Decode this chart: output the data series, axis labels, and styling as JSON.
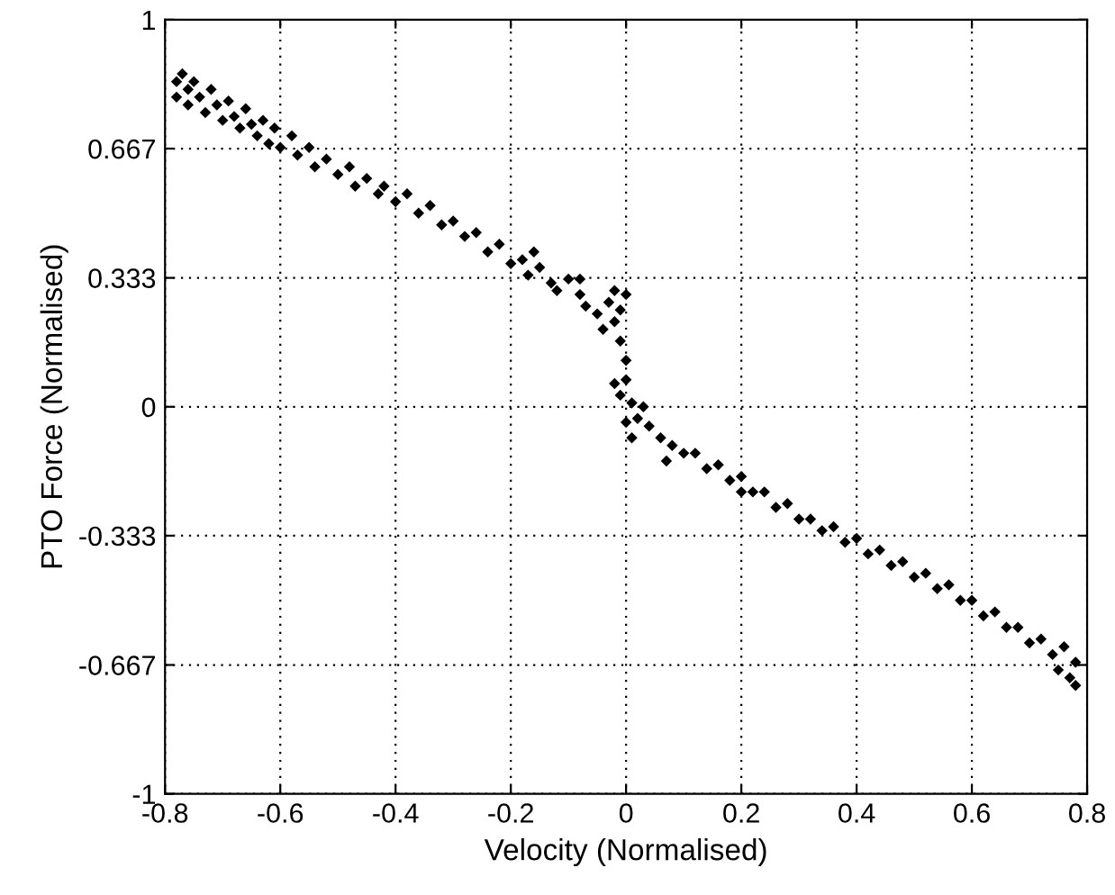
{
  "chart_data": {
    "type": "scatter",
    "xlabel": "Velocity (Normalised)",
    "ylabel": "PTO Force (Normalised)",
    "xlim": [
      -0.8,
      0.8
    ],
    "ylim": [
      -1,
      1
    ],
    "xticks": [
      -0.8,
      -0.6,
      -0.4,
      -0.2,
      0,
      0.2,
      0.4,
      0.6,
      0.8
    ],
    "yticks": [
      -1,
      -0.667,
      -0.333,
      0,
      0.333,
      0.667,
      1
    ],
    "grid": true,
    "marker": "diamond",
    "series": [
      {
        "color": "#000000",
        "x": [
          -0.78,
          -0.78,
          -0.77,
          -0.76,
          -0.76,
          -0.75,
          -0.74,
          -0.73,
          -0.72,
          -0.71,
          -0.7,
          -0.69,
          -0.68,
          -0.67,
          -0.66,
          -0.65,
          -0.64,
          -0.63,
          -0.62,
          -0.61,
          -0.6,
          -0.58,
          -0.57,
          -0.55,
          -0.54,
          -0.52,
          -0.5,
          -0.48,
          -0.47,
          -0.45,
          -0.43,
          -0.42,
          -0.4,
          -0.38,
          -0.36,
          -0.34,
          -0.32,
          -0.3,
          -0.28,
          -0.26,
          -0.24,
          -0.22,
          -0.2,
          -0.18,
          -0.17,
          -0.16,
          -0.15,
          -0.13,
          -0.12,
          -0.1,
          -0.08,
          -0.08,
          -0.07,
          -0.05,
          -0.04,
          -0.03,
          -0.02,
          -0.02,
          -0.01,
          -0.01,
          0.0,
          0.0,
          -0.02,
          -0.01,
          0.0,
          0.01,
          0.0,
          0.01,
          0.02,
          0.03,
          0.04,
          0.06,
          0.07,
          0.08,
          0.1,
          0.12,
          0.14,
          0.16,
          0.18,
          0.2,
          0.2,
          0.22,
          0.24,
          0.26,
          0.28,
          0.3,
          0.32,
          0.34,
          0.36,
          0.38,
          0.4,
          0.42,
          0.44,
          0.46,
          0.48,
          0.5,
          0.52,
          0.54,
          0.56,
          0.58,
          0.6,
          0.62,
          0.64,
          0.66,
          0.68,
          0.7,
          0.72,
          0.74,
          0.75,
          0.76,
          0.77,
          0.78,
          0.78
        ],
        "values": [
          0.84,
          0.8,
          0.86,
          0.82,
          0.78,
          0.84,
          0.8,
          0.76,
          0.82,
          0.78,
          0.74,
          0.79,
          0.75,
          0.72,
          0.77,
          0.73,
          0.7,
          0.74,
          0.68,
          0.72,
          0.67,
          0.7,
          0.65,
          0.67,
          0.62,
          0.64,
          0.6,
          0.62,
          0.57,
          0.59,
          0.55,
          0.57,
          0.53,
          0.55,
          0.5,
          0.52,
          0.47,
          0.48,
          0.44,
          0.45,
          0.4,
          0.42,
          0.37,
          0.38,
          0.34,
          0.4,
          0.36,
          0.32,
          0.3,
          0.33,
          0.29,
          0.33,
          0.26,
          0.24,
          0.2,
          0.27,
          0.3,
          0.22,
          0.25,
          0.17,
          0.29,
          0.12,
          0.06,
          0.03,
          0.07,
          0.01,
          -0.04,
          -0.08,
          -0.03,
          0.0,
          -0.05,
          -0.08,
          -0.14,
          -0.1,
          -0.12,
          -0.12,
          -0.16,
          -0.15,
          -0.19,
          -0.18,
          -0.22,
          -0.22,
          -0.22,
          -0.26,
          -0.25,
          -0.29,
          -0.29,
          -0.32,
          -0.31,
          -0.35,
          -0.34,
          -0.38,
          -0.37,
          -0.41,
          -0.4,
          -0.44,
          -0.43,
          -0.47,
          -0.46,
          -0.5,
          -0.5,
          -0.54,
          -0.53,
          -0.57,
          -0.57,
          -0.61,
          -0.6,
          -0.64,
          -0.68,
          -0.62,
          -0.7,
          -0.66,
          -0.72
        ]
      }
    ]
  }
}
